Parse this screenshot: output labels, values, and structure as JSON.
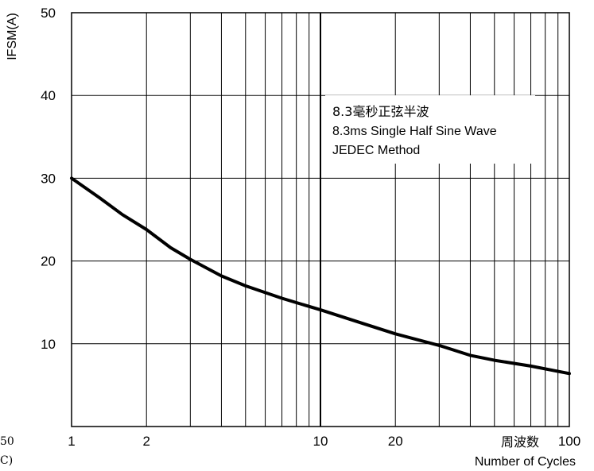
{
  "chart_data": {
    "type": "line",
    "title": "",
    "ylabel": "IFSM(A)",
    "xlabel_cn": "周波数",
    "xlabel": "Number of Cycles",
    "xscale": "log",
    "xlim": [
      1,
      100
    ],
    "ylim": [
      0,
      50
    ],
    "grid": true,
    "x_ticks": [
      {
        "value": 1,
        "label": "1"
      },
      {
        "value": 2,
        "label": "2"
      },
      {
        "value": 10,
        "label": "10"
      },
      {
        "value": 20,
        "label": "20"
      },
      {
        "value": 100,
        "label": "100"
      }
    ],
    "y_ticks": [
      {
        "value": 10,
        "label": "10"
      },
      {
        "value": 20,
        "label": "20"
      },
      {
        "value": 30,
        "label": "30"
      },
      {
        "value": 40,
        "label": "40"
      },
      {
        "value": 50,
        "label": "50"
      }
    ],
    "annotations": [
      "8.3毫秒正弦半波",
      "8.3ms Single Half Sine Wave",
      "JEDEC Method"
    ],
    "cropped_edge_text": [
      "50",
      "C)"
    ],
    "series": [
      {
        "color": "#000000",
        "x": [
          1,
          1.3,
          1.6,
          2,
          2.5,
          3,
          4,
          5,
          7,
          10,
          15,
          20,
          30,
          40,
          50,
          70,
          100
        ],
        "y": [
          30,
          27.6,
          25.6,
          23.8,
          21.6,
          20.2,
          18.2,
          17,
          15.5,
          14.1,
          12.4,
          11.2,
          9.8,
          8.6,
          8.0,
          7.3,
          6.4
        ]
      }
    ]
  }
}
